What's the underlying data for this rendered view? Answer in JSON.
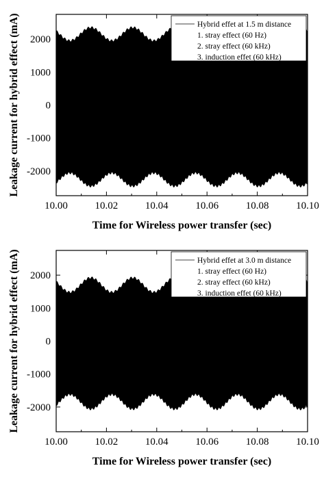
{
  "chart_data": [
    {
      "type": "line",
      "xlabel": "Time for Wireless power transfer (sec)",
      "ylabel": "Leakage current for hybrid effect (mA)",
      "xlim": [
        10.0,
        10.1
      ],
      "ylim": [
        -2750,
        2750
      ],
      "xticks": [
        "10.00",
        "10.02",
        "10.04",
        "10.06",
        "10.08",
        "10.10"
      ],
      "xtick_values": [
        10.0,
        10.02,
        10.04,
        10.06,
        10.08,
        10.1
      ],
      "yticks": [
        "2000",
        "1000",
        "0",
        "-1000",
        "-2000"
      ],
      "ytick_values": [
        2000,
        1000,
        0,
        -1000,
        -2000
      ],
      "legend": {
        "placement": "top-right",
        "title": "Hybrid effet at 1.5 m distance",
        "items": [
          "1. stray effect (60 Hz)",
          "2. stray effect (60 kHz)",
          "3. induction effet (60 kHz)"
        ]
      },
      "series": [
        {
          "envelope_upper": {
            "center": 2150,
            "amplitude": 200,
            "frequency_hz": 60,
            "peak_time": 10.0138
          },
          "envelope_lower": {
            "center": -2260,
            "amplitude": 200,
            "frequency_hz": 60,
            "peak_time": 10.0138
          },
          "carrier_frequency_hz": 60000,
          "color": "#000000"
        }
      ]
    },
    {
      "type": "line",
      "xlabel": "Time for Wireless power transfer (sec)",
      "ylabel": "Leakage current for hybrid effect (mA)",
      "xlim": [
        10.0,
        10.1
      ],
      "ylim": [
        -2750,
        2750
      ],
      "xticks": [
        "10.00",
        "10.02",
        "10.04",
        "10.06",
        "10.08",
        "10.10"
      ],
      "xtick_values": [
        10.0,
        10.02,
        10.04,
        10.06,
        10.08,
        10.1
      ],
      "yticks": [
        "2000",
        "1000",
        "0",
        "-1000",
        "-2000"
      ],
      "ytick_values": [
        2000,
        1000,
        0,
        -1000,
        -2000
      ],
      "legend": {
        "placement": "top-right",
        "title": "Hybrid effet at 3.0 m distance",
        "items": [
          "1. stray effect (60 Hz)",
          "2. stray effect (60 kHz)",
          "3. induction effet (60 kHz)"
        ]
      },
      "series": [
        {
          "envelope_upper": {
            "center": 1700,
            "amplitude": 220,
            "frequency_hz": 60,
            "peak_time": 10.0138
          },
          "envelope_lower": {
            "center": -1840,
            "amplitude": 220,
            "frequency_hz": 60,
            "peak_time": 10.0138
          },
          "carrier_frequency_hz": 60000,
          "color": "#000000"
        }
      ]
    }
  ]
}
